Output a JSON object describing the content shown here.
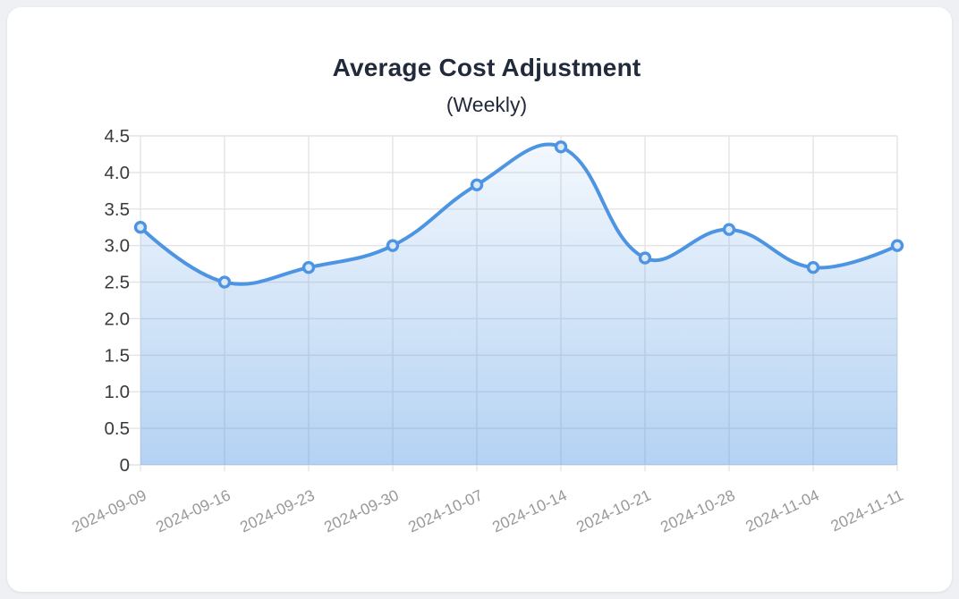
{
  "page": {
    "background_color": "#eef0f3",
    "card_color": "#ffffff"
  },
  "chart_data": {
    "type": "area",
    "title": "Average Cost Adjustment",
    "subtitle": "(Weekly)",
    "categories": [
      "2024-09-09",
      "2024-09-16",
      "2024-09-23",
      "2024-09-30",
      "2024-10-07",
      "2024-10-14",
      "2024-10-21",
      "2024-10-28",
      "2024-11-04",
      "2024-11-11"
    ],
    "series": [
      {
        "name": "Average Cost Adjustment",
        "values": [
          3.25,
          2.5,
          2.7,
          3.0,
          3.83,
          4.35,
          2.83,
          3.22,
          2.7,
          3.0
        ]
      }
    ],
    "xlabel": "",
    "ylabel": "",
    "ylim": [
      0,
      4.5
    ],
    "ytick_step": 0.5,
    "ytick_labels": [
      "0",
      "0.5",
      "1.0",
      "1.5",
      "2.0",
      "2.5",
      "3.0",
      "3.5",
      "4.0",
      "4.5"
    ],
    "grid": true,
    "legend_position": "none",
    "x_labels_rotation_deg": -25,
    "colors": {
      "line": "#4d94e2",
      "area_top": "rgba(77,148,226,0.06)",
      "area_bottom": "rgba(77,148,226,0.42)",
      "marker_stroke": "#4d94e2",
      "marker_fill": "#dbe9f9",
      "grid": "#e4e4e4",
      "y_tick_label": "#3a3a3a",
      "x_tick_label": "#999999",
      "title": "#212b3c"
    }
  }
}
